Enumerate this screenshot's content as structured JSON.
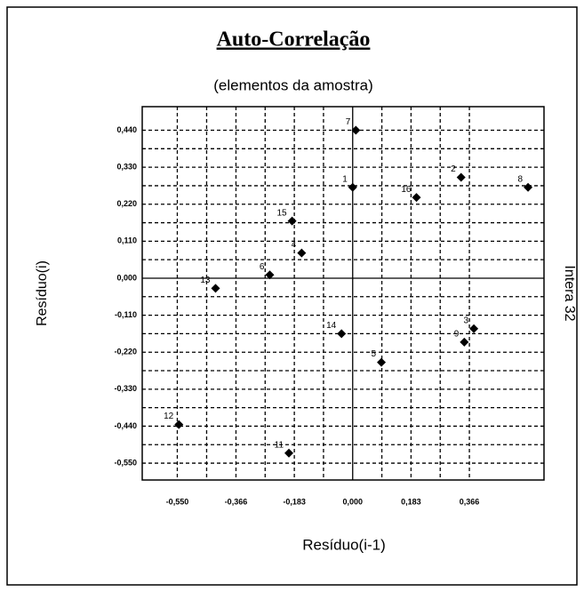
{
  "chart_data": {
    "type": "scatter",
    "title": "Auto-Correlação",
    "subtitle": "(elementos da amostra)",
    "x_label": "Resíduo(i-1)",
    "y_label": "Resíduo(i)",
    "side_label": "Intera 32",
    "color": "#000000",
    "grid": true,
    "point_labels": [
      "1",
      "2",
      "3",
      "4",
      "5",
      "6",
      "7",
      "8",
      "9",
      "11",
      "12",
      "13",
      "14",
      "15",
      "16"
    ],
    "x": [
      0.0,
      0.34,
      0.38,
      -0.16,
      0.09,
      -0.26,
      0.01,
      0.55,
      0.35,
      -0.2,
      -0.545,
      -0.43,
      -0.035,
      -0.19,
      0.2
    ],
    "values": [
      0.27,
      0.3,
      -0.15,
      0.075,
      -0.25,
      0.01,
      0.44,
      0.27,
      -0.19,
      -0.52,
      -0.435,
      -0.03,
      -0.165,
      0.17,
      0.24
    ],
    "xlim": [
      -0.66,
      0.6
    ],
    "ylim": [
      -0.6,
      0.51
    ],
    "xticks": [
      {
        "value": -0.55,
        "label": "-0,550"
      },
      {
        "value": -0.366,
        "label": "-0,366"
      },
      {
        "value": -0.183,
        "label": "-0,183"
      },
      {
        "value": 0,
        "label": "0,000"
      },
      {
        "value": 0.183,
        "label": "0,183"
      },
      {
        "value": 0.366,
        "label": "0,366"
      }
    ],
    "yticks": [
      {
        "value": 0.44,
        "label": "0,440"
      },
      {
        "value": 0.33,
        "label": "0,330"
      },
      {
        "value": 0.22,
        "label": "0,220"
      },
      {
        "value": 0.11,
        "label": "0,110"
      },
      {
        "value": 0,
        "label": "0,000"
      },
      {
        "value": -0.11,
        "label": "-0,110"
      },
      {
        "value": -0.22,
        "label": "-0,220"
      },
      {
        "value": -0.33,
        "label": "-0,330"
      },
      {
        "value": -0.44,
        "label": "-0,440"
      },
      {
        "value": -0.55,
        "label": "-0,550"
      }
    ]
  }
}
